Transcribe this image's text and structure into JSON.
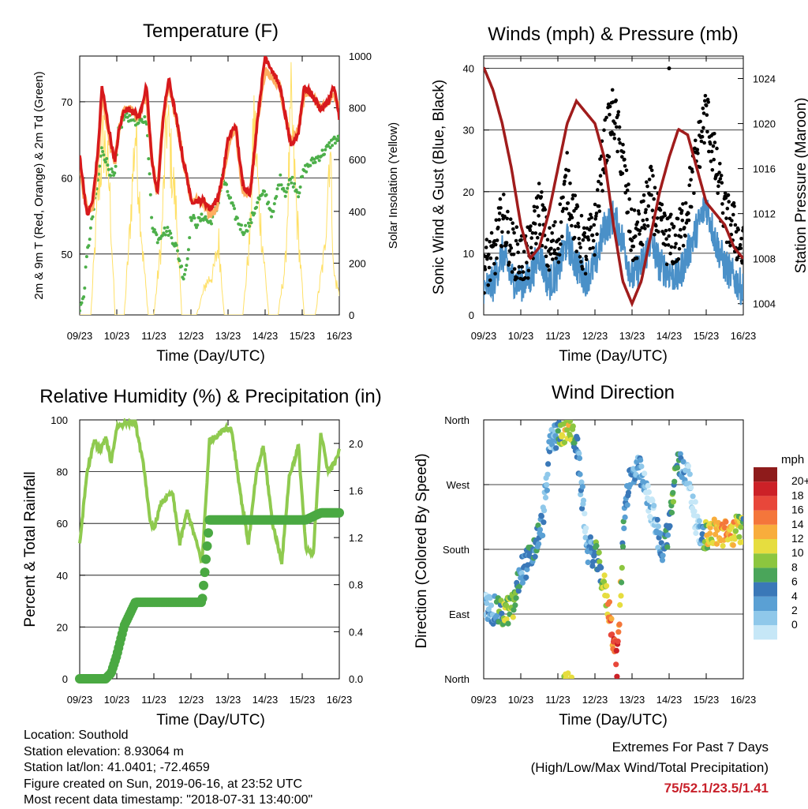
{
  "colors": {
    "temp_2m": "#d7191c",
    "temp_9m": "#fdae61",
    "dewpoint": "#4daf4a",
    "insolation": "#ffe066",
    "wind": "#4a90c8",
    "gust": "#000000",
    "pressure": "#a01c1c",
    "humidity": "#8fca4f",
    "rain": "#4aa942"
  },
  "speed_colors": [
    "#c6e7f7",
    "#8fc8ea",
    "#5aa0d4",
    "#3a78b8",
    "#4aa55a",
    "#8cc63f",
    "#e6dd3f",
    "#f8ad3c",
    "#f4763b",
    "#e8473a",
    "#cc2127",
    "#8e1b1b"
  ],
  "x_ticks": [
    "09/23",
    "10/23",
    "11/23",
    "12/23",
    "13/23",
    "14/23",
    "15/23",
    "16/23"
  ],
  "xlabel": "Time (Day/UTC)",
  "info": {
    "location": "Location: Southold",
    "elevation": "Station elevation: 8.93064 m",
    "latlon": "Station lat/lon: 41.0401; -72.4659",
    "created": "Figure created on Sun, 2019-06-16, at 23:52 UTC",
    "recent": "Most recent data timestamp: \"2018-07-31 13:40:00\""
  },
  "extremes": {
    "title": "Extremes For Past 7 Days",
    "subtitle": "(High/Low/Max Wind/Total Precipitation)",
    "values": "75/52.1/23.5/1.41"
  },
  "chart_data": [
    {
      "type": "line",
      "title": "Temperature (F)",
      "xlabel": "Time (Day/UTC)",
      "ylabel": "2m & 9m T (Red, Orange) & 2m Td (Green)",
      "ylabel_right": "Solar Insolation (Yellow)",
      "x": [
        0,
        0.1,
        0.2,
        0.35,
        0.5,
        0.6,
        0.8,
        0.95,
        1.05,
        1.2,
        1.4,
        1.6,
        1.8,
        1.95,
        2.1,
        2.25,
        2.4,
        2.6,
        2.8,
        2.9,
        3.0,
        3.15,
        3.35,
        3.5,
        3.7,
        3.85,
        4.0,
        4.2,
        4.4,
        4.6,
        4.8,
        5.0,
        5.2,
        5.4,
        5.55,
        5.7,
        5.9,
        6.05,
        6.25,
        6.5,
        6.7,
        6.85,
        7.0
      ],
      "ylim": [
        42,
        76
      ],
      "yticks": [
        50,
        60,
        70
      ],
      "y2lim": [
        0,
        1000
      ],
      "y2ticks": [
        0,
        200,
        400,
        600,
        800,
        1000
      ],
      "series": [
        {
          "name": "2m T",
          "values": [
            63,
            59,
            55,
            57,
            64,
            72,
            66,
            62,
            66,
            69,
            69,
            68,
            72,
            62,
            58,
            68,
            73,
            68,
            62,
            60,
            57,
            57,
            57,
            56,
            57,
            60,
            65,
            67,
            59,
            58,
            68,
            76,
            74,
            72,
            68,
            64,
            66,
            72,
            71,
            69,
            70,
            72,
            68
          ]
        },
        {
          "name": "9m T",
          "values": [
            62,
            58,
            56,
            56,
            63,
            71,
            65,
            62,
            66,
            69,
            69,
            68,
            71,
            62,
            58,
            68,
            72,
            68,
            62,
            60,
            57,
            57,
            57,
            55,
            56,
            60,
            64,
            67,
            58,
            58,
            68,
            74,
            73,
            72,
            68,
            65,
            66,
            71,
            71,
            69,
            70,
            71,
            69
          ]
        },
        {
          "name": "2m Td",
          "values": [
            43,
            44,
            50,
            55,
            60,
            64,
            61,
            60,
            66,
            68,
            68,
            67,
            68,
            54,
            52,
            53,
            53,
            51,
            47,
            49,
            55,
            54,
            55,
            54,
            56,
            60,
            58,
            55,
            53,
            54,
            57,
            58,
            55,
            60,
            58,
            60,
            58,
            61,
            62,
            63,
            64,
            65,
            65
          ]
        },
        {
          "name": "Solar Insolation",
          "x": [
            0,
            0.3,
            0.5,
            0.65,
            0.8,
            0.95,
            1.2,
            1.35,
            1.5,
            1.7,
            1.85,
            2.0,
            2.2,
            2.35,
            2.6,
            2.75,
            2.9,
            3.15,
            3.4,
            3.6,
            3.75,
            3.9,
            4.15,
            4.4,
            4.6,
            4.7,
            4.85,
            5.1,
            5.35,
            5.55,
            5.7,
            5.85,
            6.05,
            6.35,
            6.6,
            6.75,
            6.85,
            7.0
          ],
          "values": [
            0,
            0,
            600,
            850,
            620,
            0,
            0,
            400,
            900,
            300,
            0,
            0,
            350,
            950,
            500,
            0,
            0,
            0,
            150,
            200,
            350,
            0,
            0,
            0,
            400,
            950,
            500,
            0,
            0,
            250,
            980,
            500,
            0,
            0,
            300,
            850,
            200,
            100
          ]
        }
      ]
    },
    {
      "type": "scatter",
      "title": "Winds (mph) & Pressure (mb)",
      "xlabel": "Time (Day/UTC)",
      "ylabel": "Sonic Wind & Gust (Blue, Black)",
      "ylabel_right": "Station Pressure (Maroon)",
      "x": [
        0,
        0.25,
        0.5,
        0.75,
        1.0,
        1.25,
        1.5,
        1.75,
        2.0,
        2.25,
        2.5,
        2.75,
        3.0,
        3.25,
        3.5,
        3.75,
        4.0,
        4.25,
        4.5,
        4.75,
        5.0,
        5.25,
        5.5,
        5.75,
        6.0,
        6.25,
        6.5,
        6.75,
        7.0
      ],
      "ylim": [
        0,
        42
      ],
      "yticks": [
        0,
        10,
        20,
        30,
        40
      ],
      "y2lim": [
        1003,
        1026
      ],
      "y2ticks": [
        1004,
        1008,
        1012,
        1016,
        1020,
        1024
      ],
      "series": [
        {
          "name": "Wind",
          "values": [
            4,
            5,
            10,
            6,
            5,
            6,
            10,
            5,
            7,
            12,
            8,
            6,
            8,
            14,
            16,
            12,
            6,
            8,
            12,
            8,
            7,
            6,
            10,
            14,
            18,
            12,
            8,
            6,
            4
          ]
        },
        {
          "name": "Gust",
          "values": [
            8,
            9,
            16,
            11,
            9,
            10,
            18,
            10,
            12,
            22,
            14,
            10,
            14,
            27,
            33,
            25,
            12,
            14,
            20,
            14,
            12,
            12,
            18,
            26,
            33,
            24,
            16,
            14,
            10
          ]
        },
        {
          "name": "Pressure",
          "values": [
            1025,
            1023,
            1020,
            1016,
            1011,
            1008,
            1009,
            1012,
            1016,
            1020,
            1022,
            1021,
            1020,
            1017,
            1011,
            1006,
            1004,
            1006,
            1010,
            1014,
            1017,
            1019.5,
            1019,
            1016,
            1013,
            1012,
            1011,
            1009,
            1008
          ]
        }
      ]
    },
    {
      "type": "line",
      "title": "Relative Humidity (%) & Precipitation (in)",
      "xlabel": "Time (Day/UTC)",
      "ylabel": "Percent & Total Rainfall",
      "x": [
        0,
        0.2,
        0.4,
        0.55,
        0.7,
        0.85,
        1.0,
        1.2,
        1.5,
        1.75,
        1.9,
        2.0,
        2.2,
        2.5,
        2.7,
        2.9,
        3.1,
        3.3,
        3.5,
        3.7,
        3.95,
        4.1,
        4.35,
        4.55,
        4.75,
        4.95,
        5.2,
        5.45,
        5.65,
        5.9,
        6.1,
        6.3,
        6.5,
        6.7,
        6.9,
        7.0
      ],
      "ylim": [
        0,
        100
      ],
      "yticks": [
        0,
        20,
        40,
        60,
        80,
        100
      ],
      "y2lim": [
        0,
        2.2
      ],
      "y2ticks": [
        "0.0",
        "0.4",
        "0.8",
        "1.2",
        "1.6",
        "2.0"
      ],
      "series": [
        {
          "name": "Relative Humidity",
          "values": [
            52,
            80,
            92,
            88,
            93,
            84,
            97,
            99,
            99,
            80,
            60,
            58,
            68,
            72,
            52,
            65,
            55,
            45,
            92,
            94,
            97,
            96,
            70,
            52,
            78,
            90,
            60,
            45,
            78,
            90,
            50,
            48,
            95,
            80,
            84,
            88
          ]
        },
        {
          "name": "Total Rainfall",
          "values": [
            0,
            0,
            0,
            0,
            0,
            0.05,
            0.2,
            0.45,
            0.65,
            0.65,
            0.65,
            0.65,
            0.65,
            0.65,
            0.65,
            0.65,
            0.65,
            0.65,
            1.35,
            1.35,
            1.35,
            1.35,
            1.35,
            1.35,
            1.35,
            1.35,
            1.35,
            1.35,
            1.35,
            1.35,
            1.35,
            1.38,
            1.41,
            1.41,
            1.41,
            1.41
          ]
        }
      ]
    },
    {
      "type": "scatter",
      "title": "Wind Direction",
      "xlabel": "Time (Day/UTC)",
      "ylabel": "Direction (Colored By Speed)",
      "yticklabels": [
        "North",
        "East",
        "South",
        "West",
        "North"
      ],
      "ylim": [
        0,
        360
      ],
      "legend_title": "mph",
      "legend_labels": [
        "0",
        "2",
        "4",
        "6",
        "8",
        "10",
        "12",
        "14",
        "16",
        "18",
        "20+"
      ],
      "x": [
        0,
        0.3,
        0.5,
        0.8,
        1.0,
        1.3,
        1.6,
        1.8,
        2.0,
        2.1,
        2.3,
        2.5,
        2.8,
        3.0,
        3.2,
        3.4,
        3.6,
        3.8,
        3.95,
        4.2,
        4.5,
        4.8,
        5.0,
        5.2,
        5.5,
        5.8,
        6.0,
        6.3,
        6.6,
        6.9,
        7.0
      ],
      "series": [
        {
          "name": "Direction",
          "values": [
            100,
            95,
            90,
            100,
            150,
            170,
            220,
            330,
            340,
            345,
            350,
            330,
            180,
            175,
            140,
            90,
            20,
            240,
            280,
            290,
            240,
            180,
            210,
            300,
            285,
            200,
            200,
            205,
            200,
            210,
            205
          ]
        },
        {
          "name": "Speed",
          "values": [
            4,
            6,
            10,
            12,
            6,
            8,
            5,
            4,
            6,
            12,
            14,
            6,
            3,
            8,
            10,
            16,
            20,
            4,
            6,
            5,
            2,
            6,
            8,
            10,
            2,
            1,
            12,
            14,
            16,
            12,
            10
          ]
        }
      ]
    }
  ]
}
